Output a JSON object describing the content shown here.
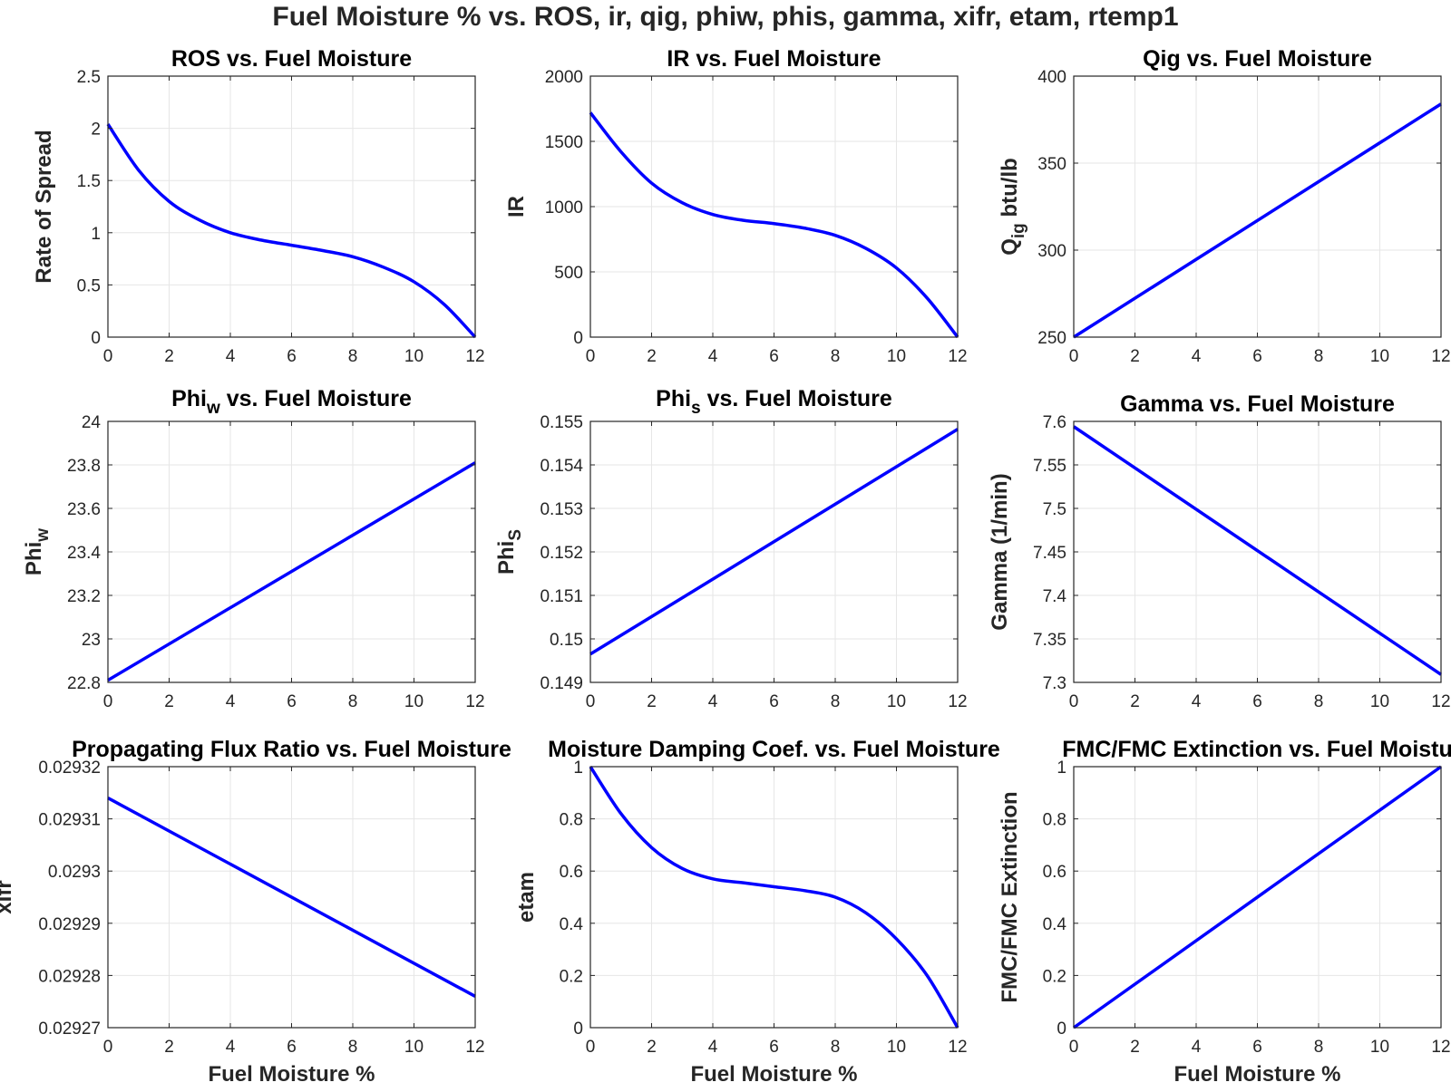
{
  "figure": {
    "suptitle": "Fuel Moisture % vs. ROS, ir, qig, phiw, phis, gamma, xifr, etam, rtemp1"
  },
  "style": {
    "line_color": "#0000ff",
    "grid_color": "#e6e6e6",
    "axis_color": "#262626",
    "text_color": "#262626"
  },
  "chart_data": [
    {
      "type": "line",
      "title": "ROS vs. Fuel Moisture",
      "xlabel": "",
      "ylabel": "Rate of Spread",
      "xlim": [
        0,
        12
      ],
      "ylim": [
        0,
        2.5
      ],
      "xticks": [
        "0",
        "2",
        "4",
        "6",
        "8",
        "10",
        "12"
      ],
      "yticks": [
        "0",
        "0.5",
        "1",
        "1.5",
        "2",
        "2.5"
      ],
      "grid": true,
      "x": [
        0,
        1,
        2,
        3,
        4,
        5,
        6,
        7,
        8,
        9,
        10,
        11,
        12
      ],
      "y": [
        2.04,
        1.6,
        1.3,
        1.12,
        1.0,
        0.93,
        0.88,
        0.83,
        0.77,
        0.67,
        0.53,
        0.31,
        0.0
      ]
    },
    {
      "type": "line",
      "title": "IR vs. Fuel Moisture",
      "xlabel": "",
      "ylabel": "IR",
      "xlim": [
        0,
        12
      ],
      "ylim": [
        0,
        2000
      ],
      "xticks": [
        "0",
        "2",
        "4",
        "6",
        "8",
        "10",
        "12"
      ],
      "yticks": [
        "0",
        "500",
        "1000",
        "1500",
        "2000"
      ],
      "grid": true,
      "x": [
        0,
        1,
        2,
        3,
        4,
        5,
        6,
        7,
        8,
        9,
        10,
        11,
        12
      ],
      "y": [
        1720,
        1420,
        1180,
        1030,
        940,
        895,
        870,
        835,
        780,
        680,
        530,
        300,
        0
      ]
    },
    {
      "type": "line",
      "title": "Qig vs. Fuel Moisture",
      "xlabel": "",
      "ylabel": "Q",
      "ylabel_sub": "ig",
      "ylabel_suffix": "btu/lb",
      "xlim": [
        0,
        12
      ],
      "ylim": [
        250,
        400
      ],
      "xticks": [
        "0",
        "2",
        "4",
        "6",
        "8",
        "10",
        "12"
      ],
      "yticks": [
        "250",
        "300",
        "350",
        "400"
      ],
      "grid": true,
      "x": [
        0,
        12
      ],
      "y": [
        250,
        384
      ]
    },
    {
      "type": "line",
      "title": "Phi",
      "title_sub": "w",
      "title_suffix": "vs. Fuel Moisture",
      "xlabel": "",
      "ylabel": "Phi",
      "ylabel_sub": "w",
      "xlim": [
        0,
        12
      ],
      "ylim": [
        22.8,
        24
      ],
      "xticks": [
        "0",
        "2",
        "4",
        "6",
        "8",
        "10",
        "12"
      ],
      "yticks": [
        "22.8",
        "23",
        "23.2",
        "23.4",
        "23.6",
        "23.8",
        "24"
      ],
      "grid": true,
      "x": [
        0,
        12
      ],
      "y": [
        22.81,
        23.81
      ]
    },
    {
      "type": "line",
      "title": "Phi",
      "title_sub": "s",
      "title_suffix": "vs. Fuel Moisture",
      "xlabel": "",
      "ylabel": "Phi",
      "ylabel_sub": "S",
      "xlim": [
        0,
        12
      ],
      "ylim": [
        0.149,
        0.155
      ],
      "xticks": [
        "0",
        "2",
        "4",
        "6",
        "8",
        "10",
        "12"
      ],
      "yticks": [
        "0.149",
        "0.15",
        "0.151",
        "0.152",
        "0.153",
        "0.154",
        "0.155"
      ],
      "grid": true,
      "x": [
        0,
        12
      ],
      "y": [
        0.14965,
        0.15482
      ]
    },
    {
      "type": "line",
      "title": "Gamma vs. Fuel Moisture",
      "xlabel": "",
      "ylabel": "Gamma (1/min)",
      "xlim": [
        0,
        12
      ],
      "ylim": [
        7.3,
        7.6
      ],
      "xticks": [
        "0",
        "2",
        "4",
        "6",
        "8",
        "10",
        "12"
      ],
      "yticks": [
        "7.3",
        "7.35",
        "7.4",
        "7.45",
        "7.5",
        "7.55",
        "7.6"
      ],
      "grid": true,
      "x": [
        0,
        12
      ],
      "y": [
        7.594,
        7.309
      ]
    },
    {
      "type": "line",
      "title": "Propagating Flux Ratio vs. Fuel Moisture",
      "xlabel": "Fuel Moisture %",
      "ylabel": "xifr",
      "xlim": [
        0,
        12
      ],
      "ylim": [
        0.02927,
        0.02932
      ],
      "xticks": [
        "0",
        "2",
        "4",
        "6",
        "8",
        "10",
        "12"
      ],
      "yticks": [
        "0.02927",
        "0.02928",
        "0.02929",
        "0.0293",
        "0.02931",
        "0.02932"
      ],
      "grid": true,
      "x": [
        0,
        12
      ],
      "y": [
        0.029314,
        0.029276
      ]
    },
    {
      "type": "line",
      "title": "Moisture Damping Coef. vs. Fuel Moisture",
      "xlabel": "Fuel Moisture %",
      "ylabel": "etam",
      "xlim": [
        0,
        12
      ],
      "ylim": [
        0,
        1
      ],
      "xticks": [
        "0",
        "2",
        "4",
        "6",
        "8",
        "10",
        "12"
      ],
      "yticks": [
        "0",
        "0.2",
        "0.4",
        "0.6",
        "0.8",
        "1"
      ],
      "grid": true,
      "x": [
        0,
        1,
        2,
        3,
        4,
        5,
        6,
        7,
        8,
        9,
        10,
        11,
        12
      ],
      "y": [
        1.0,
        0.82,
        0.69,
        0.61,
        0.57,
        0.555,
        0.54,
        0.525,
        0.5,
        0.44,
        0.34,
        0.2,
        0.0
      ]
    },
    {
      "type": "line",
      "title": "FMC/FMC Extinction vs. Fuel Moistu",
      "xlabel": "Fuel Moisture %",
      "ylabel": "FMC/FMC Extinction",
      "xlim": [
        0,
        12
      ],
      "ylim": [
        0,
        1
      ],
      "xticks": [
        "0",
        "2",
        "4",
        "6",
        "8",
        "10",
        "12"
      ],
      "yticks": [
        "0",
        "0.2",
        "0.4",
        "0.6",
        "0.8",
        "1"
      ],
      "grid": true,
      "x": [
        0,
        12
      ],
      "y": [
        0,
        1
      ]
    }
  ]
}
